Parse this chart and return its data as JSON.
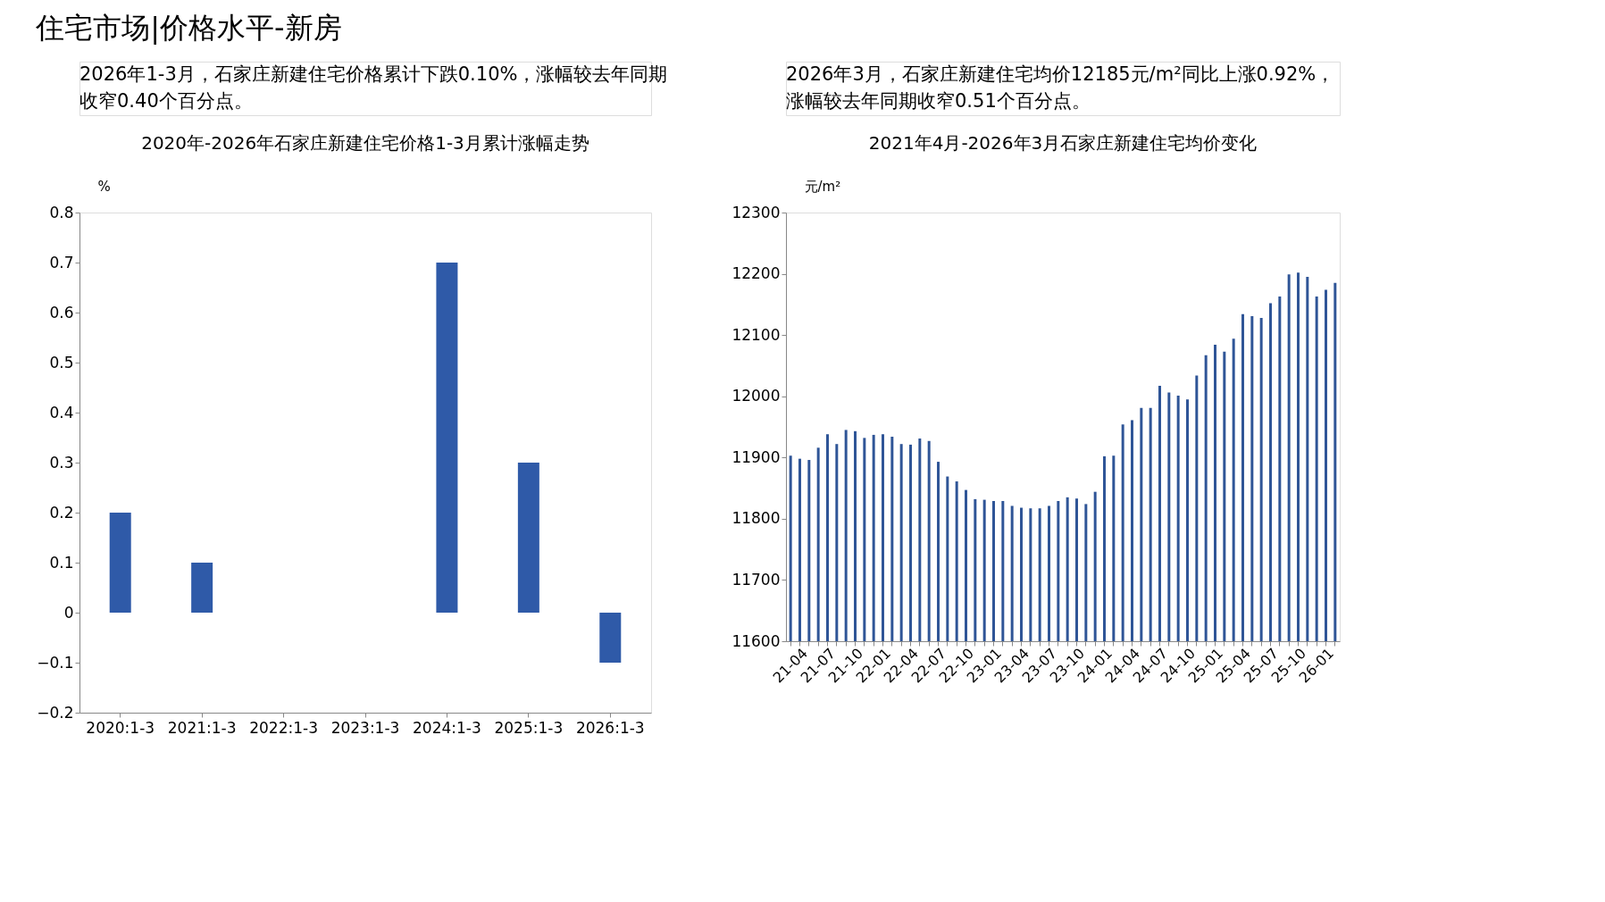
{
  "chart_data": [
    {
      "type": "bar",
      "title": "2020年-2026年石家庄新建住宅价格1-3月累计涨幅走势",
      "subtitle": "2026年1-3月，石家庄新建住宅价格累计下跌0.10%，涨幅较去年同期收窄0.40个百分点。",
      "annotations": [
        "住宅市场|价格水平-新房"
      ],
      "ylabel": "%",
      "categories": [
        "2020:1-3",
        "2021:1-3",
        "2022:1-3",
        "2023:1-3",
        "2024:1-3",
        "2025:1-3",
        "2026:1-3"
      ],
      "values": [
        0.2,
        0.1,
        0,
        0,
        0.7,
        0.3,
        -0.1
      ],
      "color": "#2f5aa8",
      "ylim": [
        -0.2,
        0.8
      ],
      "yticks": [
        -0.2,
        -0.1,
        0,
        0.1,
        0.2,
        0.3,
        0.4,
        0.5,
        0.6,
        0.7,
        0.8
      ],
      "grid": false
    },
    {
      "type": "bar",
      "title": "2021年4月-2026年3月石家庄新建住宅均价变化",
      "subtitle": "2026年3月，石家庄新建住宅均价12185元/m²同比上涨0.92%，涨幅较去年同期收窄0.51个百分点。",
      "ylabel": "元/m²",
      "categories": [
        "21-04",
        null,
        null,
        "21-07",
        null,
        null,
        "21-10",
        null,
        null,
        "22-01",
        null,
        null,
        "22-04",
        null,
        null,
        "22-07",
        null,
        null,
        "22-10",
        null,
        null,
        "23-01",
        null,
        null,
        "23-04",
        null,
        null,
        "23-07",
        null,
        null,
        "23-10",
        null,
        null,
        "24-01",
        null,
        null,
        "24-04",
        null,
        null,
        "24-07",
        null,
        null,
        "24-10",
        null,
        null,
        "25-01",
        null,
        null,
        "25-04",
        null,
        null,
        "25-07",
        null,
        null,
        "25-10",
        null,
        null,
        "26-01",
        null,
        null
      ],
      "values": [
        11903,
        11898,
        11896,
        11916,
        11938,
        11922,
        11945,
        11943,
        11932,
        11937,
        11938,
        11934,
        11922,
        11921,
        11931,
        11927,
        11893,
        11869,
        11861,
        11847,
        11832,
        11831,
        11829,
        11829,
        11821,
        11818,
        11817,
        11817,
        11821,
        11829,
        11835,
        11833,
        11824,
        11844,
        11902,
        11903,
        11954,
        11961,
        11981,
        11981,
        12017,
        12006,
        12001,
        11995,
        12034,
        12067,
        12084,
        12073,
        12094,
        12134,
        12131,
        12128,
        12152,
        12163,
        12199,
        12202,
        12195,
        12163,
        12174,
        12185
      ],
      "color": "#2f5597",
      "ylim": [
        11600,
        12300
      ],
      "yticks": [
        11600,
        11700,
        11800,
        11900,
        12000,
        12100,
        12200,
        12300
      ],
      "grid": false
    }
  ]
}
